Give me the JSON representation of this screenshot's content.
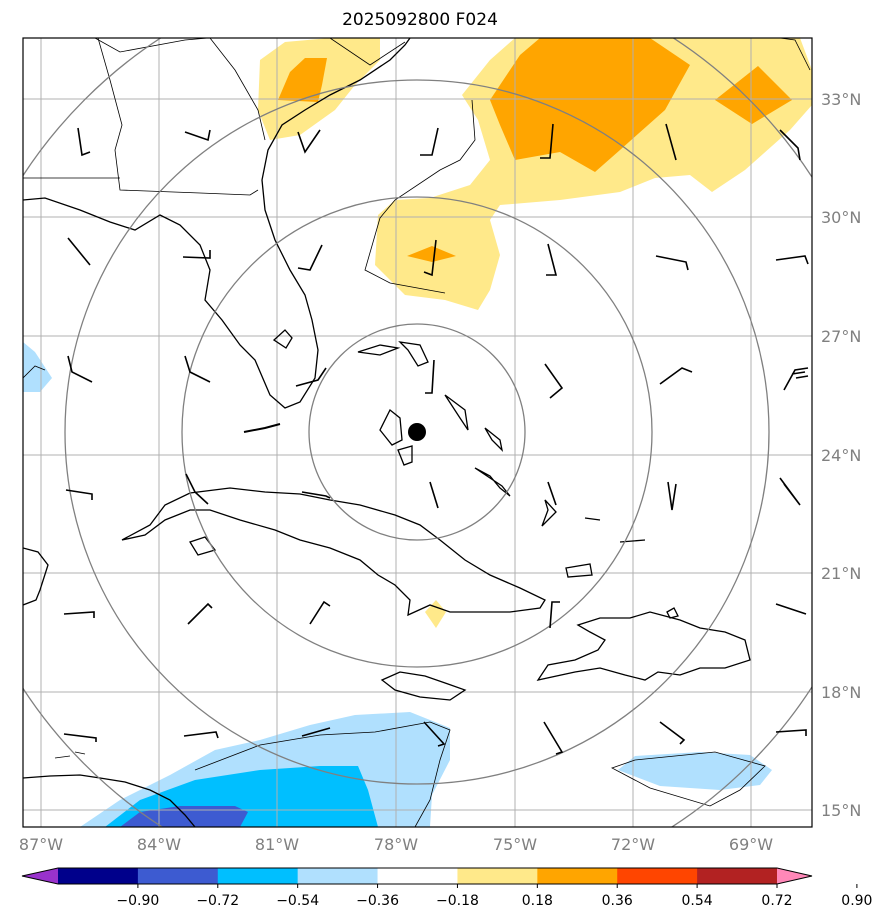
{
  "title": "2025092800 F024",
  "x_ticks": [
    "87°W",
    "84°W",
    "81°W",
    "78°W",
    "75°W",
    "72°W",
    "69°W"
  ],
  "y_ticks": [
    "33°N",
    "30°N",
    "27°N",
    "24°N",
    "21°N",
    "18°N",
    "15°N"
  ],
  "colorbar": {
    "ticks": [
      "−0.90",
      "−0.72",
      "−0.54",
      "−0.36",
      "−0.18",
      "0.18",
      "0.36",
      "0.54",
      "0.72",
      "0.90"
    ],
    "colors": [
      "#9932cc",
      "#00008b",
      "#3d5bd1",
      "#00bfff",
      "#b0e0fe",
      "#ffffff",
      "#ffe98a",
      "#ffa500",
      "#ff4500",
      "#b22222",
      "#ff88b8"
    ]
  },
  "colors": {
    "pos_weak": "#ffe98a",
    "pos_mid": "#ffa500",
    "neg_weak": "#b0e0fe",
    "neg_mid": "#00bfff",
    "neg_strong": "#3d5bd1",
    "gridline": "#b0b0b0",
    "range_ring": "#808080"
  },
  "center_marker": "storm-center"
}
